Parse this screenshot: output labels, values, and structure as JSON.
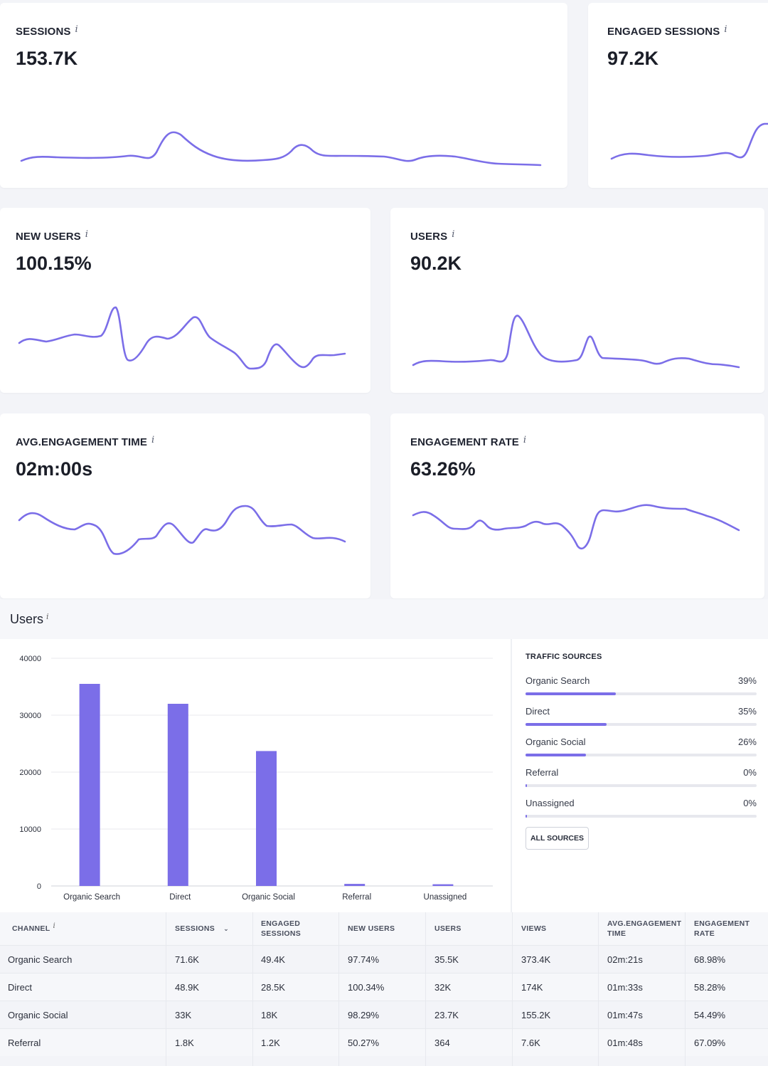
{
  "metrics": [
    {
      "label": "SESSIONS",
      "value": "153.7K"
    },
    {
      "label": "ENGAGED SESSIONS",
      "value": "97.2K"
    },
    {
      "label": "NEW USERS",
      "value": "100.15%"
    },
    {
      "label": "USERS",
      "value": "90.2K"
    },
    {
      "label": "AVG.ENGAGEMENT TIME",
      "value": "02m:00s"
    },
    {
      "label": "ENGAGEMENT RATE",
      "value": "63.26%"
    }
  ],
  "info_glyph": "i",
  "users_section": {
    "title": "Users"
  },
  "chart_data": {
    "type": "bar",
    "categories": [
      "Organic Search",
      "Direct",
      "Organic Social",
      "Referral",
      "Unassigned"
    ],
    "values": [
      35500,
      32000,
      23700,
      364,
      300
    ],
    "yticks": [
      "40000",
      "30000",
      "20000",
      "10000",
      "0"
    ],
    "ylim": [
      0,
      40000
    ],
    "grid": true,
    "color": "#7b6ee8"
  },
  "traffic_sources": {
    "title": "TRAFFIC SOURCES",
    "items": [
      {
        "name": "Organic Search",
        "pct": "39%",
        "fill": 0.39
      },
      {
        "name": "Direct",
        "pct": "35%",
        "fill": 0.35
      },
      {
        "name": "Organic Social",
        "pct": "26%",
        "fill": 0.26
      },
      {
        "name": "Referral",
        "pct": "0%",
        "fill": 0.0
      },
      {
        "name": "Unassigned",
        "pct": "0%",
        "fill": 0.0
      }
    ],
    "button_label": "ALL SOURCES"
  },
  "table": {
    "headers": [
      "CHANNEL",
      "SESSIONS",
      "ENGAGED SESSIONS",
      "NEW USERS",
      "USERS",
      "VIEWS",
      "AVG.ENGAGEMENT TIME",
      "ENGAGEMENT RATE"
    ],
    "rows": [
      [
        "Organic Search",
        "71.6K",
        "49.4K",
        "97.74%",
        "35.5K",
        "373.4K",
        "02m:21s",
        "68.98%"
      ],
      [
        "Direct",
        "48.9K",
        "28.5K",
        "100.34%",
        "32K",
        "174K",
        "01m:33s",
        "58.28%"
      ],
      [
        "Organic Social",
        "33K",
        "18K",
        "98.29%",
        "23.7K",
        "155.2K",
        "01m:47s",
        "54.49%"
      ],
      [
        "Referral",
        "1.8K",
        "1.2K",
        "50.27%",
        "364",
        "7.6K",
        "01m:48s",
        "67.09%"
      ]
    ]
  },
  "colors": {
    "accent": "#7b6ee8",
    "background": "#f3f4f8"
  }
}
